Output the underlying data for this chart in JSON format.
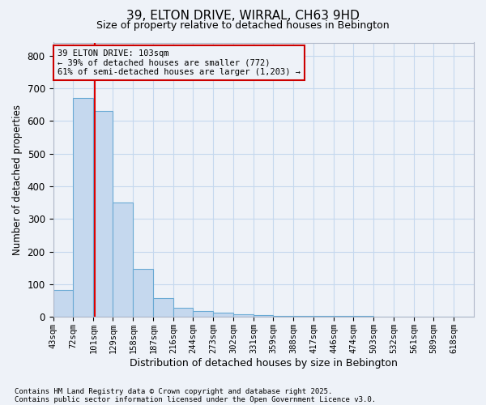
{
  "title_line1": "39, ELTON DRIVE, WIRRAL, CH63 9HD",
  "title_line2": "Size of property relative to detached houses in Bebington",
  "xlabel": "Distribution of detached houses by size in Bebington",
  "ylabel": "Number of detached properties",
  "bin_labels": [
    "43sqm",
    "72sqm",
    "101sqm",
    "129sqm",
    "158sqm",
    "187sqm",
    "216sqm",
    "244sqm",
    "273sqm",
    "302sqm",
    "331sqm",
    "359sqm",
    "388sqm",
    "417sqm",
    "446sqm",
    "474sqm",
    "503sqm",
    "532sqm",
    "561sqm",
    "589sqm",
    "618sqm"
  ],
  "bin_edges": [
    43,
    72,
    101,
    129,
    158,
    187,
    216,
    244,
    273,
    302,
    331,
    359,
    388,
    417,
    446,
    474,
    503,
    532,
    561,
    589,
    618
  ],
  "bar_heights": [
    83,
    670,
    630,
    350,
    148,
    57,
    27,
    18,
    12,
    8,
    5,
    4,
    3,
    3,
    2,
    2,
    1,
    1,
    1,
    1,
    1
  ],
  "bar_color": "#c5d8ee",
  "bar_edge_color": "#6aaad4",
  "property_size": 103,
  "red_line_color": "#dd0000",
  "annotation_line1": "39 ELTON DRIVE: 103sqm",
  "annotation_line2": "← 39% of detached houses are smaller (772)",
  "annotation_line3": "61% of semi-detached houses are larger (1,203) →",
  "annotation_box_color": "#cc0000",
  "ylim": [
    0,
    840
  ],
  "yticks": [
    0,
    100,
    200,
    300,
    400,
    500,
    600,
    700,
    800
  ],
  "grid_color": "#c5d8ee",
  "footnote1": "Contains HM Land Registry data © Crown copyright and database right 2025.",
  "footnote2": "Contains public sector information licensed under the Open Government Licence v3.0.",
  "bg_color": "#eef2f8"
}
